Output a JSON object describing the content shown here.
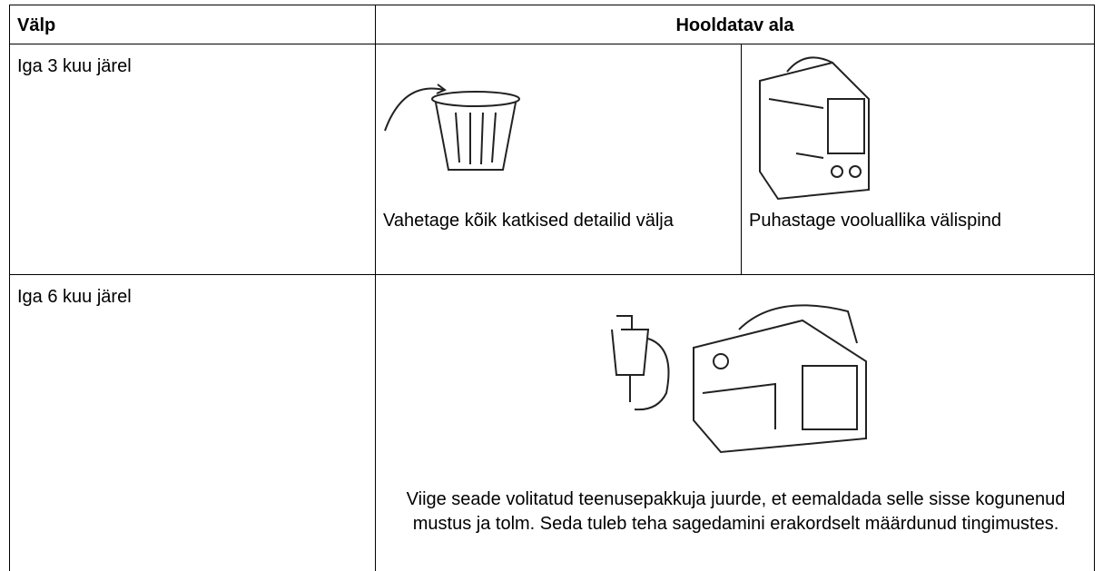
{
  "header": {
    "columns": [
      "Välp",
      "Hooldatav ala"
    ]
  },
  "rows": [
    {
      "interval": "Iga 3 kuu järel",
      "items": [
        "Vahetage kõik katkised detailid välja",
        "Puhastage vooluallika välispind"
      ]
    },
    {
      "interval": "Iga 6 kuu järel",
      "items": [
        "Viige seade volitatud teenusepakkuja juurde, et eemaldada selle sisse kogunenud mustus ja tolm. Seda tuleb teha sagedamini erakordselt määrdunud tingimustes."
      ]
    }
  ]
}
